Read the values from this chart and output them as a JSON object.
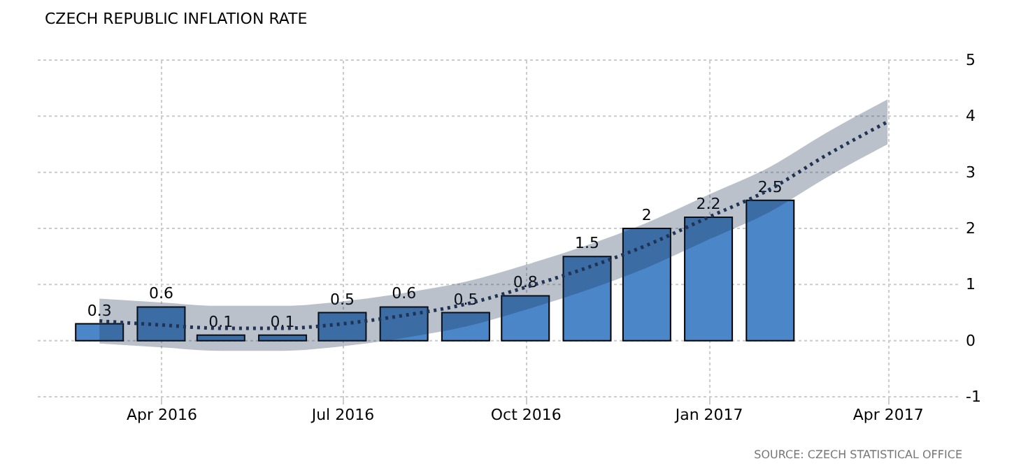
{
  "chart_data": {
    "type": "bar",
    "title": "CZECH REPUBLIC INFLATION RATE",
    "x": [
      "2016-03",
      "2016-04",
      "2016-05",
      "2016-06",
      "2016-07",
      "2016-08",
      "2016-09",
      "2016-10",
      "2016-11",
      "2016-12",
      "2017-01",
      "2017-02"
    ],
    "series": [
      {
        "color": "#4a86c8",
        "values": [
          0.3,
          0.6,
          0.1,
          0.1,
          0.5,
          0.6,
          0.5,
          0.8,
          1.5,
          2,
          2.2,
          2.5
        ],
        "value_labels": [
          "0.3",
          "0.6",
          "0.1",
          "0.1",
          "0.5",
          "0.6",
          "0.5",
          "0.8",
          "1.5",
          "2",
          "2.2",
          "2.5"
        ]
      },
      {
        "type": "line",
        "color": "#1f3354",
        "line_style": "dotted",
        "x": [
          "2016-03",
          "2016-04",
          "2016-05",
          "2016-06",
          "2016-07",
          "2016-08",
          "2016-09",
          "2016-10",
          "2016-11",
          "2016-12",
          "2017-01",
          "2017-02",
          "2017-03",
          "2017-04"
        ],
        "values": [
          0.35,
          0.28,
          0.22,
          0.22,
          0.3,
          0.45,
          0.65,
          0.95,
          1.3,
          1.7,
          2.2,
          2.7,
          3.3,
          3.9
        ],
        "lower": [
          -0.05,
          -0.12,
          -0.18,
          -0.18,
          -0.1,
          0.05,
          0.25,
          0.55,
          0.9,
          1.3,
          1.8,
          2.3,
          2.9,
          3.5
        ],
        "upper": [
          0.75,
          0.68,
          0.62,
          0.62,
          0.7,
          0.85,
          1.05,
          1.35,
          1.7,
          2.1,
          2.6,
          3.1,
          3.7,
          4.3
        ]
      }
    ],
    "xlim": [
      "2016-01-30",
      "2017-05-05"
    ],
    "xticks": [
      {
        "value": "2016-04",
        "label": "Apr 2016"
      },
      {
        "value": "2016-07",
        "label": "Jul 2016"
      },
      {
        "value": "2016-10",
        "label": "Oct 2016"
      },
      {
        "value": "2017-01",
        "label": "Jan 2017"
      },
      {
        "value": "2017-04",
        "label": "Apr 2017"
      }
    ],
    "ylim": [
      -1,
      5
    ],
    "yticks": [
      -1,
      0,
      1,
      2,
      3,
      4,
      5
    ],
    "grid": true,
    "annotations": [
      "SOURCE: CZECH STATISTICAL OFFICE"
    ]
  }
}
